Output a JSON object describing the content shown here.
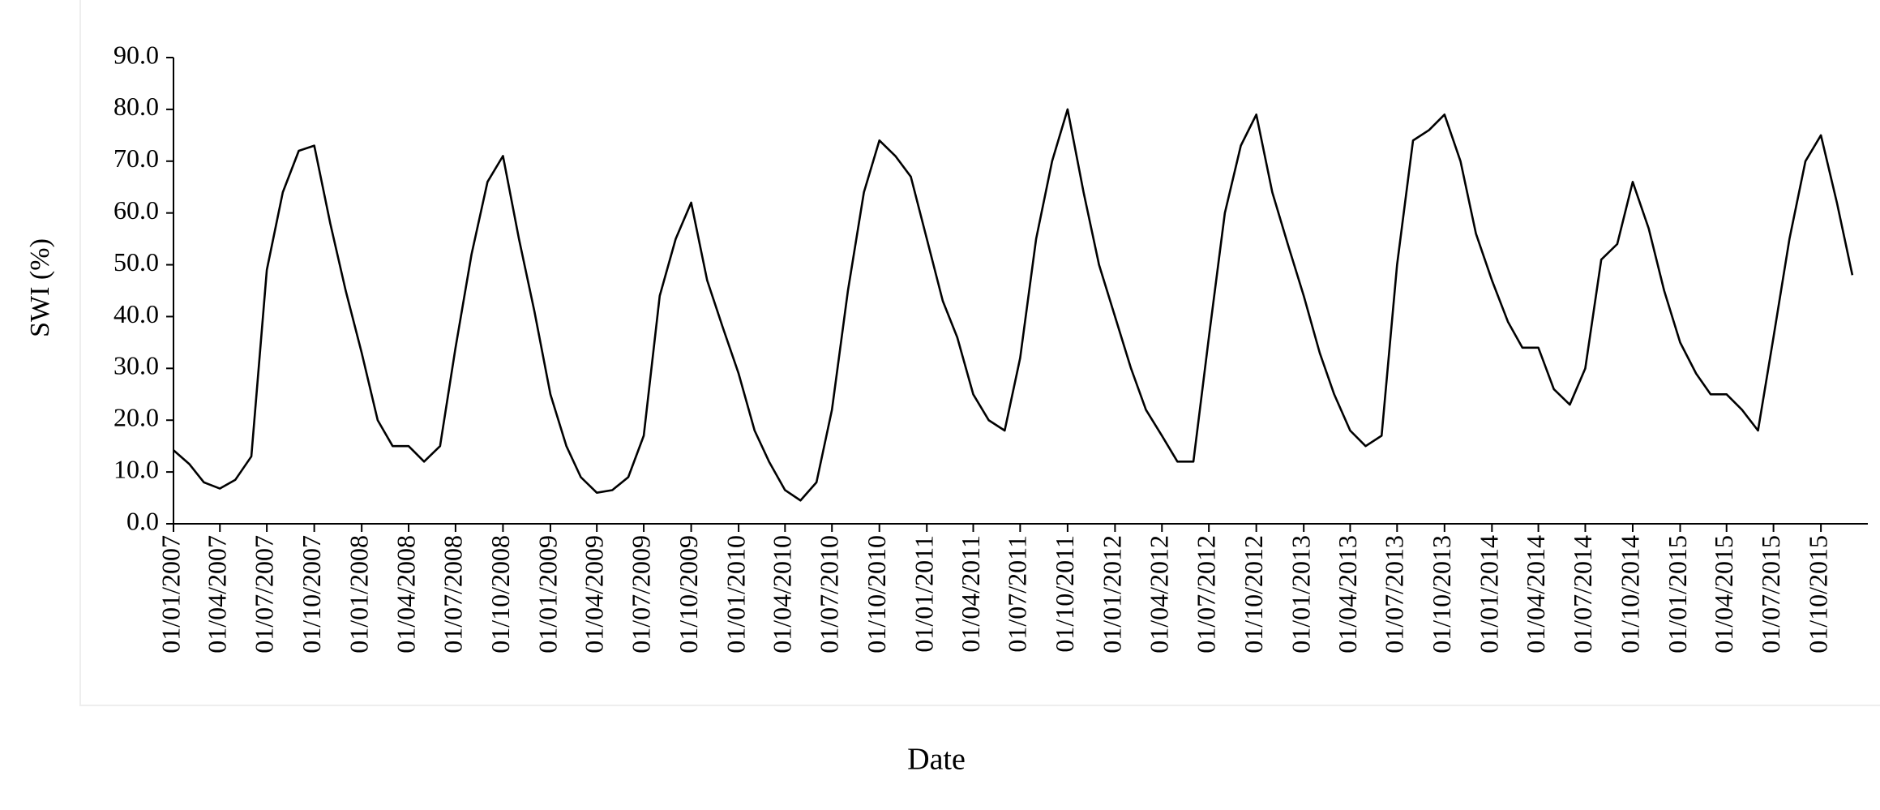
{
  "chart_data": {
    "type": "line",
    "xlabel": "Date",
    "ylabel": "SWI (%)",
    "x": [
      "01/01/2007",
      "01/02/2007",
      "01/03/2007",
      "01/04/2007",
      "01/05/2007",
      "01/06/2007",
      "01/07/2007",
      "01/08/2007",
      "01/09/2007",
      "01/10/2007",
      "01/11/2007",
      "01/12/2007",
      "01/01/2008",
      "01/02/2008",
      "01/03/2008",
      "01/04/2008",
      "01/05/2008",
      "01/06/2008",
      "01/07/2008",
      "01/08/2008",
      "01/09/2008",
      "01/10/2008",
      "01/11/2008",
      "01/12/2008",
      "01/01/2009",
      "01/02/2009",
      "01/03/2009",
      "01/04/2009",
      "01/05/2009",
      "01/06/2009",
      "01/07/2009",
      "01/08/2009",
      "01/09/2009",
      "01/10/2009",
      "01/11/2009",
      "01/12/2009",
      "01/01/2010",
      "01/02/2010",
      "01/03/2010",
      "01/04/2010",
      "01/05/2010",
      "01/06/2010",
      "01/07/2010",
      "01/08/2010",
      "01/09/2010",
      "01/10/2010",
      "01/11/2010",
      "01/12/2010",
      "01/01/2011",
      "01/02/2011",
      "01/03/2011",
      "01/04/2011",
      "01/05/2011",
      "01/06/2011",
      "01/07/2011",
      "01/08/2011",
      "01/09/2011",
      "01/10/2011",
      "01/11/2011",
      "01/12/2011",
      "01/01/2012",
      "01/02/2012",
      "01/03/2012",
      "01/04/2012",
      "01/05/2012",
      "01/06/2012",
      "01/07/2012",
      "01/08/2012",
      "01/09/2012",
      "01/10/2012",
      "01/11/2012",
      "01/12/2012",
      "01/01/2013",
      "01/02/2013",
      "01/03/2013",
      "01/04/2013",
      "01/05/2013",
      "01/06/2013",
      "01/07/2013",
      "01/08/2013",
      "01/09/2013",
      "01/10/2013",
      "01/11/2013",
      "01/12/2013",
      "01/01/2014",
      "01/02/2014",
      "01/03/2014",
      "01/04/2014",
      "01/05/2014",
      "01/06/2014",
      "01/07/2014",
      "01/08/2014",
      "01/09/2014",
      "01/10/2014",
      "01/11/2014",
      "01/12/2014",
      "01/01/2015",
      "01/02/2015",
      "01/03/2015",
      "01/04/2015",
      "01/05/2015",
      "01/06/2015",
      "01/07/2015",
      "01/08/2015",
      "01/09/2015",
      "01/10/2015",
      "01/11/2015",
      "01/12/2015"
    ],
    "series": [
      {
        "name": "SWI",
        "color": "#000000",
        "values": [
          14.2,
          11.5,
          8,
          6.8,
          8.5,
          13,
          49,
          64,
          72,
          73,
          58,
          45,
          33,
          20,
          15,
          15,
          12,
          15,
          34,
          52,
          66,
          71,
          55,
          41,
          25,
          15,
          9,
          6,
          6.5,
          9,
          17,
          44,
          55,
          62,
          47,
          38,
          29,
          18,
          12,
          6.5,
          4.5,
          8,
          22,
          45,
          64,
          74,
          71,
          67,
          55,
          43,
          36,
          25,
          20,
          18,
          32,
          55,
          70,
          80,
          64,
          50,
          40,
          30,
          22,
          17,
          12,
          12,
          36,
          60,
          73,
          79,
          64,
          54,
          44,
          33,
          25,
          18,
          15,
          17,
          50,
          74,
          76,
          79,
          70,
          56,
          47,
          39,
          34,
          34,
          26,
          23,
          30,
          51,
          54,
          66,
          57,
          45,
          35,
          29,
          25,
          25,
          22,
          18,
          36,
          55,
          70,
          75,
          62,
          48
        ]
      }
    ],
    "xlim": [
      "01/01/2007",
      "31/12/2015"
    ],
    "xticks": [
      "01/01/2007",
      "01/04/2007",
      "01/07/2007",
      "01/10/2007",
      "01/01/2008",
      "01/04/2008",
      "01/07/2008",
      "01/10/2008",
      "01/01/2009",
      "01/04/2009",
      "01/07/2009",
      "01/10/2009",
      "01/01/2010",
      "01/04/2010",
      "01/07/2010",
      "01/10/2010",
      "01/01/2011",
      "01/04/2011",
      "01/07/2011",
      "01/10/2011",
      "01/01/2012",
      "01/04/2012",
      "01/07/2012",
      "01/10/2012",
      "01/01/2013",
      "01/04/2013",
      "01/07/2013",
      "01/10/2013",
      "01/01/2014",
      "01/04/2014",
      "01/07/2014",
      "01/10/2014",
      "01/01/2015",
      "01/04/2015",
      "01/07/2015",
      "01/10/2015"
    ],
    "ylim": [
      0,
      90
    ],
    "yticks": [
      {
        "value": 0,
        "label": "0.0"
      },
      {
        "value": 10,
        "label": "10.0"
      },
      {
        "value": 20,
        "label": "20.0"
      },
      {
        "value": 30,
        "label": "30.0"
      },
      {
        "value": 40,
        "label": "40.0"
      },
      {
        "value": 50,
        "label": "50.0"
      },
      {
        "value": 60,
        "label": "60.0"
      },
      {
        "value": 70,
        "label": "70.0"
      },
      {
        "value": 80,
        "label": "80.0"
      },
      {
        "value": 90,
        "label": "90.0"
      }
    ],
    "grid": false
  }
}
